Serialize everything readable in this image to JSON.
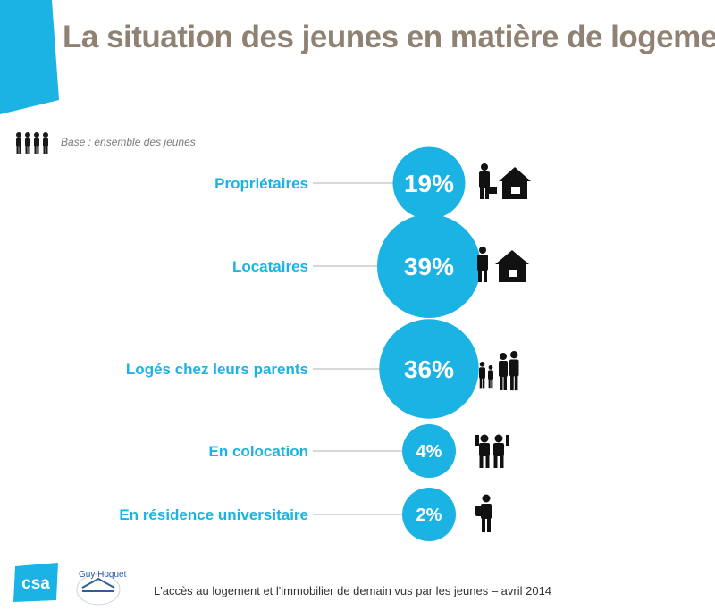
{
  "title": "La situation des jeunes en matière de logement",
  "base_label": "Base : ensemble des jeunes",
  "footer": "L'accès au logement et l'immobilier de demain vus par les jeunes – avril 2014",
  "logos": {
    "csa": "csa",
    "guy_hoquet": "Guy Hoquet"
  },
  "colors": {
    "accent": "#1bb3e3",
    "title": "#8f8273",
    "line": "#b0b0b0"
  },
  "chart_data": {
    "type": "bubble",
    "categories": [
      "Propriétaires",
      "Locataires",
      "Logés chez leurs parents",
      "En colocation",
      "En résidence universitaire"
    ],
    "values": [
      19,
      39,
      36,
      4,
      2
    ],
    "value_labels": [
      "19%",
      "39%",
      "36%",
      "4%",
      "2%"
    ],
    "icons": [
      "businessman-house-icon",
      "person-house-icon",
      "family-icon",
      "roommates-icon",
      "student-backpack-icon"
    ]
  }
}
